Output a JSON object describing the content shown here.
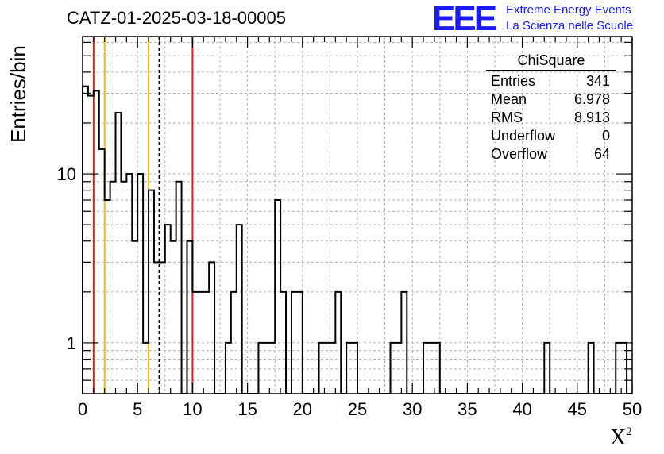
{
  "header": {
    "title": "CATZ-01-2025-03-18-00005",
    "logo_text": "EEE",
    "logo_line1": "Extreme Energy Events",
    "logo_line2": "La Scienza nelle Scuole"
  },
  "stats_box": {
    "title": "ChiSquare",
    "rows": [
      {
        "label": "Entries",
        "value": "341"
      },
      {
        "label": "Mean",
        "value": "6.978"
      },
      {
        "label": "RMS",
        "value": "8.913"
      },
      {
        "label": "Underflow",
        "value": "0"
      },
      {
        "label": "Overflow",
        "value": "64"
      }
    ]
  },
  "chart_data": {
    "type": "histogram",
    "title": "CATZ-01-2025-03-18-00005",
    "xlabel": "X²",
    "ylabel": "Entries/bin",
    "xlim": [
      0,
      50
    ],
    "ylim": [
      0.5,
      65
    ],
    "y_scale": "log",
    "grid": true,
    "bin_width": 0.5,
    "x_ticks": [
      0,
      5,
      10,
      15,
      20,
      25,
      30,
      35,
      40,
      45,
      50
    ],
    "y_ticks": [
      1,
      10
    ],
    "counts": [
      33,
      29,
      31,
      14,
      7,
      9,
      23,
      9,
      10,
      4,
      10,
      1,
      8,
      3,
      3,
      5,
      4,
      9,
      0,
      4,
      2,
      2,
      2,
      3,
      0,
      0,
      1,
      2,
      5,
      0,
      0,
      0,
      1,
      1,
      1,
      7,
      2,
      0,
      2,
      2,
      0,
      0,
      0,
      1,
      1,
      1,
      2,
      0,
      1,
      1,
      0,
      0,
      0,
      0,
      0,
      0,
      1,
      1,
      2,
      0,
      0,
      0,
      1,
      1,
      1,
      0,
      0,
      0,
      0,
      0,
      0,
      0,
      0,
      0,
      0,
      0,
      0,
      0,
      0,
      0,
      0,
      0,
      0,
      0,
      1,
      0,
      0,
      0,
      0,
      0,
      0,
      0,
      1,
      0,
      0,
      0,
      0,
      1,
      1,
      0
    ],
    "vertical_lines": [
      {
        "x": 1,
        "color": "#e02020",
        "style": "solid"
      },
      {
        "x": 2,
        "color": "#f0c000",
        "style": "solid"
      },
      {
        "x": 6,
        "color": "#f0c000",
        "style": "solid"
      },
      {
        "x": 6.978,
        "color": "#000000",
        "style": "dashed"
      },
      {
        "x": 10,
        "color": "#e02020",
        "style": "solid"
      }
    ]
  }
}
